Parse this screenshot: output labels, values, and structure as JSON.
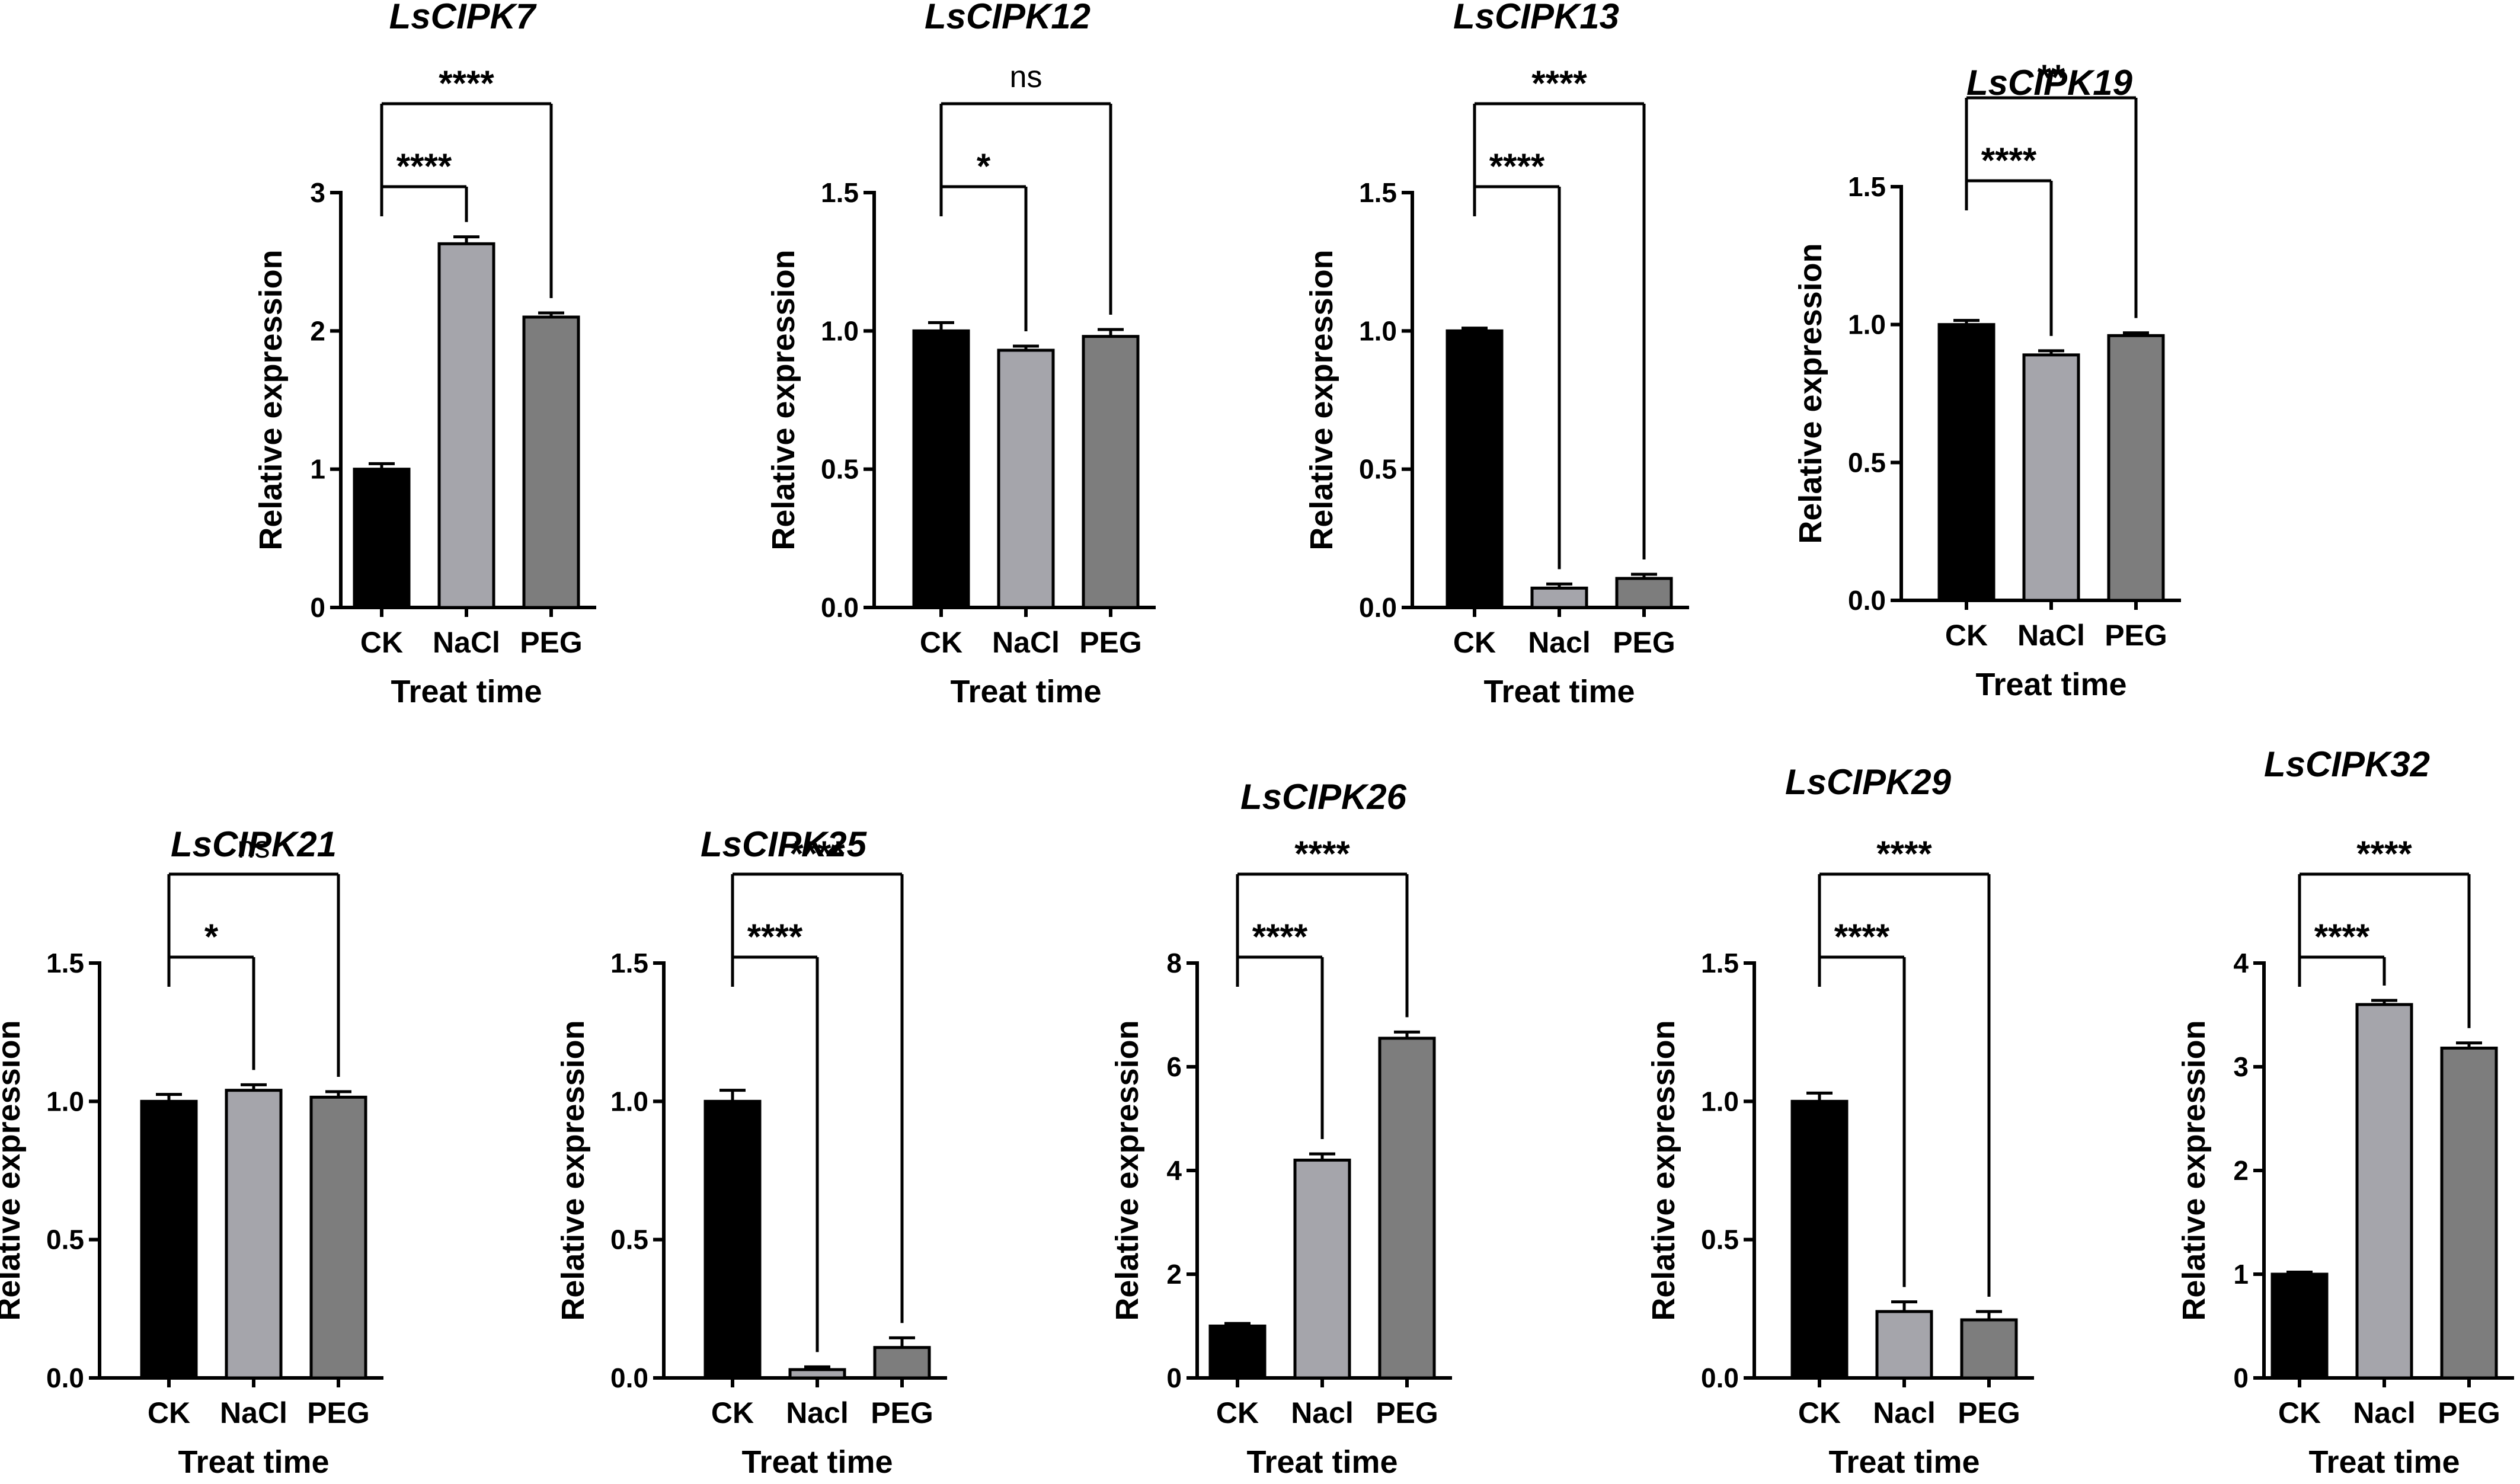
{
  "colors": {
    "CK": "#000000",
    "NaCl": "#a5a5ab",
    "PEG": "#7d7d7d",
    "axis": "#000000",
    "background": "#ffffff"
  },
  "chart_data": [
    {
      "type": "bar",
      "title": "LsCIPK7",
      "ylabel": "Relative expression",
      "xlabel": "Treat time",
      "categories": [
        "CK",
        "NaCl",
        "PEG"
      ],
      "values": [
        1.0,
        2.63,
        2.1
      ],
      "errors": [
        0.04,
        0.05,
        0.03
      ],
      "ylim": [
        0,
        3
      ],
      "yticks": [
        "0",
        "1",
        "2",
        "3"
      ],
      "significance": [
        {
          "pair": [
            "CK",
            "NaCl"
          ],
          "label": "****"
        },
        {
          "pair": [
            "CK",
            "PEG"
          ],
          "label": "****"
        }
      ]
    },
    {
      "type": "bar",
      "title": "LsCIPK12",
      "ylabel": "Relative expression",
      "xlabel": "Treat time",
      "categories": [
        "CK",
        "NaCl",
        "PEG"
      ],
      "values": [
        1.0,
        0.93,
        0.98
      ],
      "errors": [
        0.03,
        0.015,
        0.025
      ],
      "ylim": [
        0,
        1.5
      ],
      "yticks": [
        "0.0",
        "0.5",
        "1.0",
        "1.5"
      ],
      "significance": [
        {
          "pair": [
            "CK",
            "NaCl"
          ],
          "label": "*"
        },
        {
          "pair": [
            "CK",
            "PEG"
          ],
          "label": "ns"
        }
      ]
    },
    {
      "type": "bar",
      "title": "LsCIPK13",
      "ylabel": "Relative expression",
      "xlabel": "Treat time",
      "categories": [
        "CK",
        "Nacl",
        "PEG"
      ],
      "values": [
        1.0,
        0.07,
        0.105
      ],
      "errors": [
        0.01,
        0.015,
        0.015
      ],
      "ylim": [
        0,
        1.5
      ],
      "yticks": [
        "0.0",
        "0.5",
        "1.0",
        "1.5"
      ],
      "significance": [
        {
          "pair": [
            "CK",
            "Nacl"
          ],
          "label": "****"
        },
        {
          "pair": [
            "CK",
            "PEG"
          ],
          "label": "****"
        }
      ]
    },
    {
      "type": "bar",
      "title": "LsCIPK19",
      "ylabel": "Relative expression",
      "xlabel": "Treat time",
      "categories": [
        "CK",
        "NaCl",
        "PEG"
      ],
      "values": [
        1.0,
        0.89,
        0.96
      ],
      "errors": [
        0.015,
        0.015,
        0.01
      ],
      "ylim": [
        0,
        1.5
      ],
      "yticks": [
        "0.0",
        "0.5",
        "1.0",
        "1.5"
      ],
      "significance": [
        {
          "pair": [
            "CK",
            "NaCl"
          ],
          "label": "****"
        },
        {
          "pair": [
            "CK",
            "PEG"
          ],
          "label": "**"
        }
      ]
    },
    {
      "type": "bar",
      "title": "LsCIPK21",
      "ylabel": "Relative expression",
      "xlabel": "Treat time",
      "categories": [
        "CK",
        "NaCl",
        "PEG"
      ],
      "values": [
        1.0,
        1.04,
        1.015
      ],
      "errors": [
        0.025,
        0.02,
        0.02
      ],
      "ylim": [
        0,
        1.5
      ],
      "yticks": [
        "0.0",
        "0.5",
        "1.0",
        "1.5"
      ],
      "significance": [
        {
          "pair": [
            "CK",
            "NaCl"
          ],
          "label": "*"
        },
        {
          "pair": [
            "CK",
            "PEG"
          ],
          "label": "ns"
        }
      ]
    },
    {
      "type": "bar",
      "title": "LsCIPK25",
      "ylabel": "Relative expression",
      "xlabel": "Treat time",
      "categories": [
        "CK",
        "Nacl",
        "PEG"
      ],
      "values": [
        1.0,
        0.03,
        0.11
      ],
      "errors": [
        0.04,
        0.01,
        0.035
      ],
      "ylim": [
        0,
        1.5
      ],
      "yticks": [
        "0.0",
        "0.5",
        "1.0",
        "1.5"
      ],
      "significance": [
        {
          "pair": [
            "CK",
            "Nacl"
          ],
          "label": "****"
        },
        {
          "pair": [
            "CK",
            "PEG"
          ],
          "label": "****"
        }
      ]
    },
    {
      "type": "bar",
      "title": "LsCIPK26",
      "ylabel": "Relative expression",
      "xlabel": "Treat time",
      "categories": [
        "CK",
        "Nacl",
        "PEG"
      ],
      "values": [
        1.0,
        4.2,
        6.55
      ],
      "errors": [
        0.05,
        0.12,
        0.12
      ],
      "ylim": [
        0,
        8
      ],
      "yticks": [
        "0",
        "2",
        "4",
        "6",
        "8"
      ],
      "significance": [
        {
          "pair": [
            "CK",
            "Nacl"
          ],
          "label": "****"
        },
        {
          "pair": [
            "CK",
            "PEG"
          ],
          "label": "****"
        }
      ]
    },
    {
      "type": "bar",
      "title": "LsCIPK29",
      "ylabel": "Relative expression",
      "xlabel": "Treat time",
      "categories": [
        "CK",
        "Nacl",
        "PEG"
      ],
      "values": [
        1.0,
        0.24,
        0.21
      ],
      "errors": [
        0.03,
        0.035,
        0.03
      ],
      "ylim": [
        0,
        1.5
      ],
      "yticks": [
        "0.0",
        "0.5",
        "1.0",
        "1.5"
      ],
      "significance": [
        {
          "pair": [
            "CK",
            "Nacl"
          ],
          "label": "****"
        },
        {
          "pair": [
            "CK",
            "PEG"
          ],
          "label": "****"
        }
      ]
    },
    {
      "type": "bar",
      "title": "LsCIPK32",
      "ylabel": "Relative expression",
      "xlabel": "Treat time",
      "categories": [
        "CK",
        "Nacl",
        "PEG"
      ],
      "values": [
        1.0,
        3.6,
        3.18
      ],
      "errors": [
        0.02,
        0.04,
        0.05
      ],
      "ylim": [
        0,
        4
      ],
      "yticks": [
        "0",
        "1",
        "2",
        "3",
        "4"
      ],
      "significance": [
        {
          "pair": [
            "CK",
            "Nacl"
          ],
          "label": "****"
        },
        {
          "pair": [
            "CK",
            "PEG"
          ],
          "label": "****"
        }
      ]
    }
  ]
}
